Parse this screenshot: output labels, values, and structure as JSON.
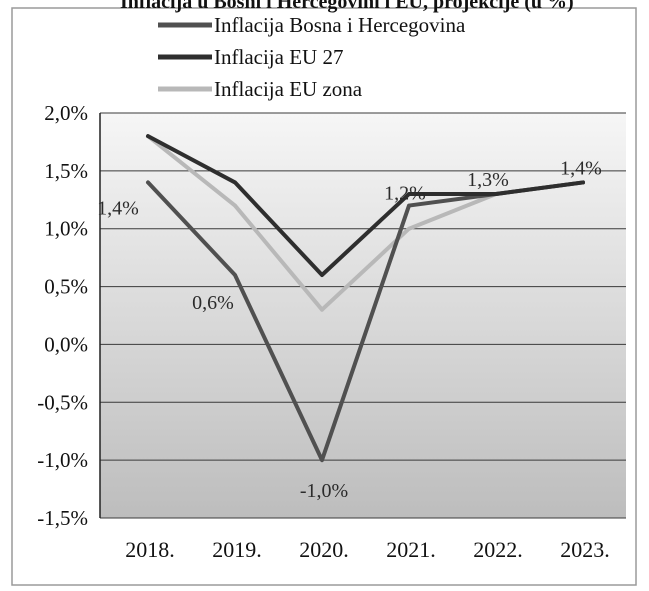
{
  "chart_data": {
    "type": "line",
    "title": "Inflacija u Bosni i Hercegovini i EU, projekcije (u %)",
    "categories": [
      "2018.",
      "2019.",
      "2020.",
      "2021.",
      "2022.",
      "2023."
    ],
    "ylim": [
      -1.5,
      2.0
    ],
    "yticks": [
      "2,0%",
      "1,5%",
      "1,0%",
      "0,5%",
      "0,0%",
      "-0,5%",
      "-1,0%",
      "-1,5%"
    ],
    "ytick_values": [
      2.0,
      1.5,
      1.0,
      0.5,
      0.0,
      -0.5,
      -1.0,
      -1.5
    ],
    "grid": true,
    "legend_position": "top-center",
    "series": [
      {
        "name": "Inflacija Bosna i Hercegovina",
        "values": [
          1.4,
          0.6,
          -1.0,
          1.2,
          1.3,
          1.4
        ],
        "labels": [
          "1,4%",
          "0,6%",
          "-1,0%",
          "1,2%",
          "1,3%",
          "1,4%"
        ],
        "color": "#505050"
      },
      {
        "name": "Inflacija EU 27",
        "values": [
          1.8,
          1.4,
          0.6,
          1.3,
          1.3,
          1.4
        ],
        "color": "#2e2e2e"
      },
      {
        "name": "Inflacija EU zona",
        "values": [
          1.8,
          1.2,
          0.3,
          1.0,
          1.3,
          1.4
        ],
        "color": "#b8b8b8"
      }
    ]
  }
}
